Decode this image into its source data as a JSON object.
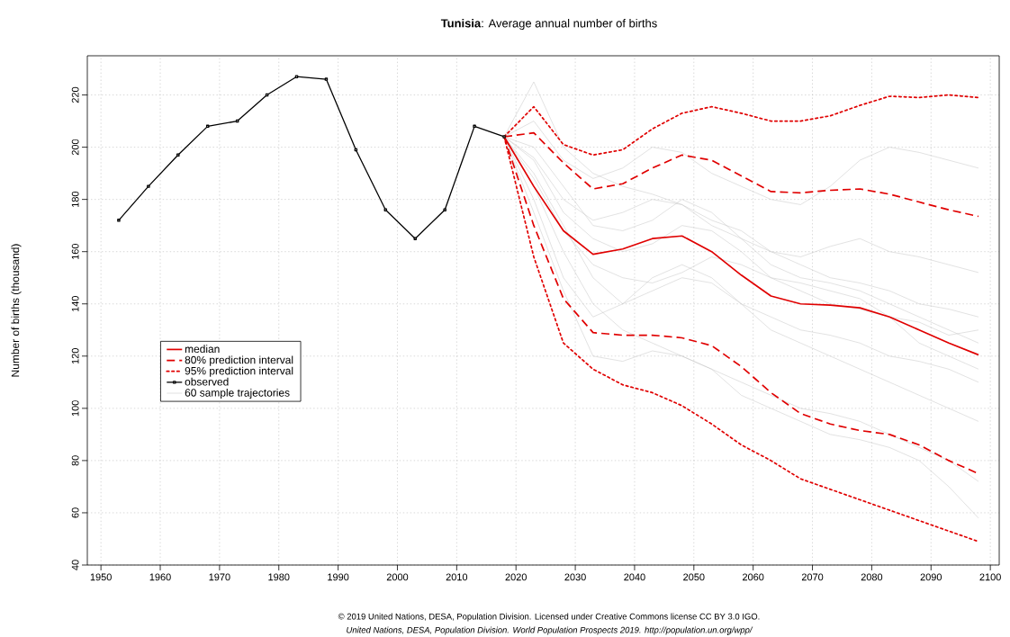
{
  "chart_data": {
    "type": "line",
    "title": "**Tunisia**: Average annual number of births",
    "ylabel": "Number of births (thousand)",
    "annotations": [
      "© 2019 United Nations, DESA, Population Division. Licensed under Creative Commons license CC BY 3.0 IGO.",
      "United Nations, DESA, Population Division. World Population Prospects 2019. http://population.un.org/wpp/"
    ],
    "x": [
      2018,
      2023,
      2028,
      2033,
      2038,
      2043,
      2048,
      2053,
      2058,
      2063,
      2068,
      2073,
      2078,
      2083,
      2088,
      2093,
      2098
    ],
    "xlim": [
      1947.7,
      2101.5
    ],
    "ylim": [
      40,
      235
    ],
    "xticks": [
      1950,
      1960,
      1970,
      1980,
      1990,
      2000,
      2010,
      2020,
      2030,
      2040,
      2050,
      2060,
      2070,
      2080,
      2090,
      2100
    ],
    "yticks": [
      40,
      60,
      80,
      100,
      120,
      140,
      160,
      180,
      200,
      220
    ],
    "grid": true,
    "legend": "left",
    "series": [
      {
        "name": "median",
        "color": "#e00000",
        "line_style": "solid",
        "values": [
          204,
          185,
          168,
          159,
          161,
          165,
          166,
          160,
          151,
          143,
          140,
          139.5,
          138.5,
          135,
          130,
          125,
          120.5
        ]
      },
      {
        "name": "80% prediction interval",
        "color": "#e00000",
        "line_style": "dashed",
        "values": [
          204,
          205.5,
          194,
          184,
          186,
          192,
          197,
          195,
          189,
          183,
          182.5,
          183.5,
          184,
          182,
          179,
          176,
          173.5
        ]
      },
      {
        "color": "#e00000",
        "line_style": "dashed",
        "values": [
          204,
          170,
          142,
          129,
          128,
          128,
          127,
          124,
          116,
          106,
          98,
          94,
          91.5,
          90,
          86,
          80,
          75
        ]
      },
      {
        "name": "95% prediction interval",
        "color": "#e00000",
        "line_style": "dotted",
        "values": [
          204,
          215.5,
          201,
          197,
          199,
          207,
          213,
          215.5,
          213,
          210,
          210,
          212,
          216,
          219.5,
          219,
          220,
          219
        ]
      },
      {
        "color": "#e00000",
        "line_style": "dotted",
        "values": [
          204,
          158,
          125,
          115,
          109,
          106,
          101,
          94,
          86,
          80,
          73,
          69,
          65,
          61,
          57,
          53,
          49
        ]
      },
      {
        "name": "observed",
        "color": "#000000",
        "line_style": "solid",
        "marker": "square",
        "x": [
          1953,
          1958,
          1963,
          1968,
          1973,
          1978,
          1983,
          1988,
          1993,
          1998,
          2003,
          2008,
          2013,
          2018
        ],
        "values": [
          172,
          185,
          197,
          208,
          210,
          220,
          227,
          226,
          199,
          176,
          165,
          176,
          208,
          204
        ]
      },
      {
        "name": "60 sample trajectories",
        "color": "#c4c4c4",
        "line_style": "solid",
        "values": [
          204,
          196,
          180,
          172,
          175,
          180,
          178,
          170,
          165,
          160,
          158,
          162,
          165,
          160,
          158,
          155,
          152
        ]
      },
      {
        "color": "#c4c4c4",
        "line_style": "solid",
        "values": [
          204,
          190,
          170,
          150,
          140,
          145,
          150,
          148,
          140,
          135,
          130,
          128,
          125,
          120,
          118,
          115,
          110
        ]
      },
      {
        "color": "#c4c4c4",
        "line_style": "solid",
        "values": [
          204,
          210,
          195,
          188,
          192,
          200,
          198,
          190,
          185,
          180,
          178,
          185,
          195,
          200,
          198,
          195,
          192
        ]
      },
      {
        "color": "#c4c4c4",
        "line_style": "solid",
        "values": [
          204,
          185,
          160,
          140,
          130,
          125,
          120,
          115,
          110,
          105,
          100,
          98,
          95,
          90,
          85,
          80,
          72
        ]
      },
      {
        "color": "#c4c4c4",
        "line_style": "solid",
        "values": [
          204,
          200,
          185,
          170,
          168,
          172,
          180,
          175,
          165,
          155,
          150,
          148,
          145,
          140,
          135,
          130,
          125
        ]
      },
      {
        "color": "#c4c4c4",
        "line_style": "solid",
        "values": [
          204,
          180,
          150,
          135,
          140,
          150,
          155,
          150,
          140,
          130,
          125,
          120,
          115,
          110,
          105,
          100,
          95
        ]
      },
      {
        "color": "#c4c4c4",
        "line_style": "solid",
        "values": [
          204,
          225,
          200,
          190,
          185,
          182,
          178,
          172,
          168,
          160,
          155,
          150,
          148,
          145,
          140,
          138,
          135
        ]
      },
      {
        "color": "#c4c4c4",
        "line_style": "solid",
        "values": [
          204,
          175,
          145,
          120,
          118,
          122,
          120,
          115,
          105,
          100,
          95,
          90,
          88,
          85,
          80,
          70,
          58
        ]
      },
      {
        "color": "#c4c4c4",
        "line_style": "solid",
        "values": [
          204,
          195,
          175,
          165,
          160,
          163,
          170,
          168,
          160,
          150,
          145,
          140,
          138,
          135,
          125,
          120,
          115
        ]
      },
      {
        "color": "#c4c4c4",
        "line_style": "solid",
        "values": [
          204,
          188,
          168,
          155,
          150,
          148,
          152,
          158,
          155,
          150,
          148,
          145,
          142,
          135,
          133,
          128,
          130
        ]
      }
    ]
  }
}
